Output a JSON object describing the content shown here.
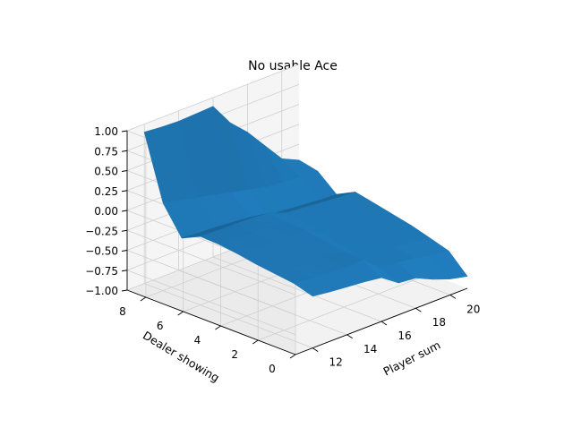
{
  "chart_data": {
    "type": "surface3d",
    "title": "No usable Ace",
    "xlabel": "Player sum",
    "ylabel": "Dealer showing",
    "zlabel": "",
    "x_ticks": [
      "12",
      "14",
      "16",
      "18",
      "20"
    ],
    "y_ticks": [
      "0",
      "2",
      "4",
      "6",
      "8"
    ],
    "z_ticks": [
      "−1.00",
      "−0.75",
      "−0.50",
      "−0.25",
      "0.00",
      "0.25",
      "0.50",
      "0.75",
      "1.00"
    ],
    "xlim": [
      11,
      21
    ],
    "ylim": [
      0,
      9
    ],
    "zlim": [
      -1,
      1
    ],
    "grid": true,
    "surface_color": "#1f77b4",
    "x": [
      12,
      13,
      14,
      15,
      16,
      17,
      18,
      19,
      20,
      21
    ],
    "y": [
      0,
      1,
      2,
      3,
      4,
      5,
      6,
      7,
      8,
      9
    ],
    "z": [
      [
        -0.35,
        -0.38,
        -0.4,
        -0.42,
        -0.45,
        -0.6,
        -0.62,
        -0.72,
        -0.8,
        -0.85
      ],
      [
        -0.28,
        -0.3,
        -0.32,
        -0.33,
        -0.32,
        -0.5,
        -0.52,
        -0.55,
        -0.6,
        -0.62
      ],
      [
        -0.25,
        -0.26,
        -0.28,
        -0.29,
        -0.3,
        -0.45,
        -0.48,
        -0.5,
        -0.52,
        -0.55
      ],
      [
        -0.22,
        -0.23,
        -0.24,
        -0.25,
        -0.26,
        -0.4,
        -0.42,
        -0.45,
        -0.47,
        -0.48
      ],
      [
        -0.18,
        -0.2,
        -0.2,
        -0.22,
        -0.22,
        -0.35,
        -0.38,
        -0.4,
        -0.42,
        -0.43
      ],
      [
        -0.15,
        -0.16,
        -0.17,
        -0.18,
        -0.2,
        -0.3,
        -0.33,
        -0.35,
        -0.37,
        -0.38
      ],
      [
        -0.14,
        -0.15,
        -0.15,
        -0.16,
        -0.18,
        -0.26,
        -0.28,
        -0.3,
        -0.32,
        -0.33
      ],
      [
        -0.25,
        -0.27,
        -0.28,
        -0.3,
        -0.32,
        -0.38,
        -0.4,
        -0.42,
        -0.44,
        -0.45
      ],
      [
        0.1,
        0.05,
        0.0,
        -0.05,
        -0.1,
        -0.15,
        -0.2,
        -0.22,
        -0.24,
        -0.25
      ],
      [
        0.9,
        0.88,
        0.87,
        0.88,
        0.89,
        0.6,
        0.4,
        0.15,
        -0.1,
        -0.2
      ]
    ]
  }
}
